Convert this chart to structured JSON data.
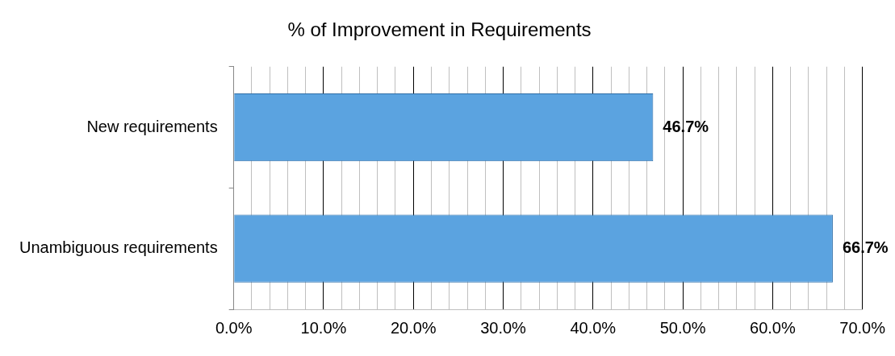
{
  "chart_data": {
    "type": "bar",
    "orientation": "horizontal",
    "title": "% of Improvement in Requirements",
    "categories": [
      "New requirements",
      "Unambiguous requirements"
    ],
    "values": [
      46.7,
      66.7
    ],
    "color": "#5ba3e0",
    "value_labels": [
      "46.7%",
      "66.7%"
    ],
    "xlim": [
      0,
      70
    ],
    "xticks": [
      {
        "value": 0,
        "label": "0.0%"
      },
      {
        "value": 2,
        "label": null
      },
      {
        "value": 4,
        "label": null
      },
      {
        "value": 6,
        "label": null
      },
      {
        "value": 8,
        "label": null
      },
      {
        "value": 10,
        "label": "10.0%"
      },
      {
        "value": 12,
        "label": null
      },
      {
        "value": 14,
        "label": null
      },
      {
        "value": 16,
        "label": null
      },
      {
        "value": 18,
        "label": null
      },
      {
        "value": 20,
        "label": "20.0%"
      },
      {
        "value": 22,
        "label": null
      },
      {
        "value": 24,
        "label": null
      },
      {
        "value": 26,
        "label": null
      },
      {
        "value": 28,
        "label": null
      },
      {
        "value": 30,
        "label": "30.0%"
      },
      {
        "value": 32,
        "label": null
      },
      {
        "value": 34,
        "label": null
      },
      {
        "value": 36,
        "label": null
      },
      {
        "value": 38,
        "label": null
      },
      {
        "value": 40,
        "label": "40.0%"
      },
      {
        "value": 42,
        "label": null
      },
      {
        "value": 44,
        "label": null
      },
      {
        "value": 46,
        "label": null
      },
      {
        "value": 48,
        "label": null
      },
      {
        "value": 50,
        "label": "50.0%"
      },
      {
        "value": 52,
        "label": null
      },
      {
        "value": 54,
        "label": null
      },
      {
        "value": 56,
        "label": null
      },
      {
        "value": 58,
        "label": null
      },
      {
        "value": 60,
        "label": "60.0%"
      },
      {
        "value": 62,
        "label": null
      },
      {
        "value": 64,
        "label": null
      },
      {
        "value": 66,
        "label": null
      },
      {
        "value": 68,
        "label": null
      },
      {
        "value": 70,
        "label": "70.0%"
      }
    ],
    "grid": "x",
    "legend": false
  }
}
